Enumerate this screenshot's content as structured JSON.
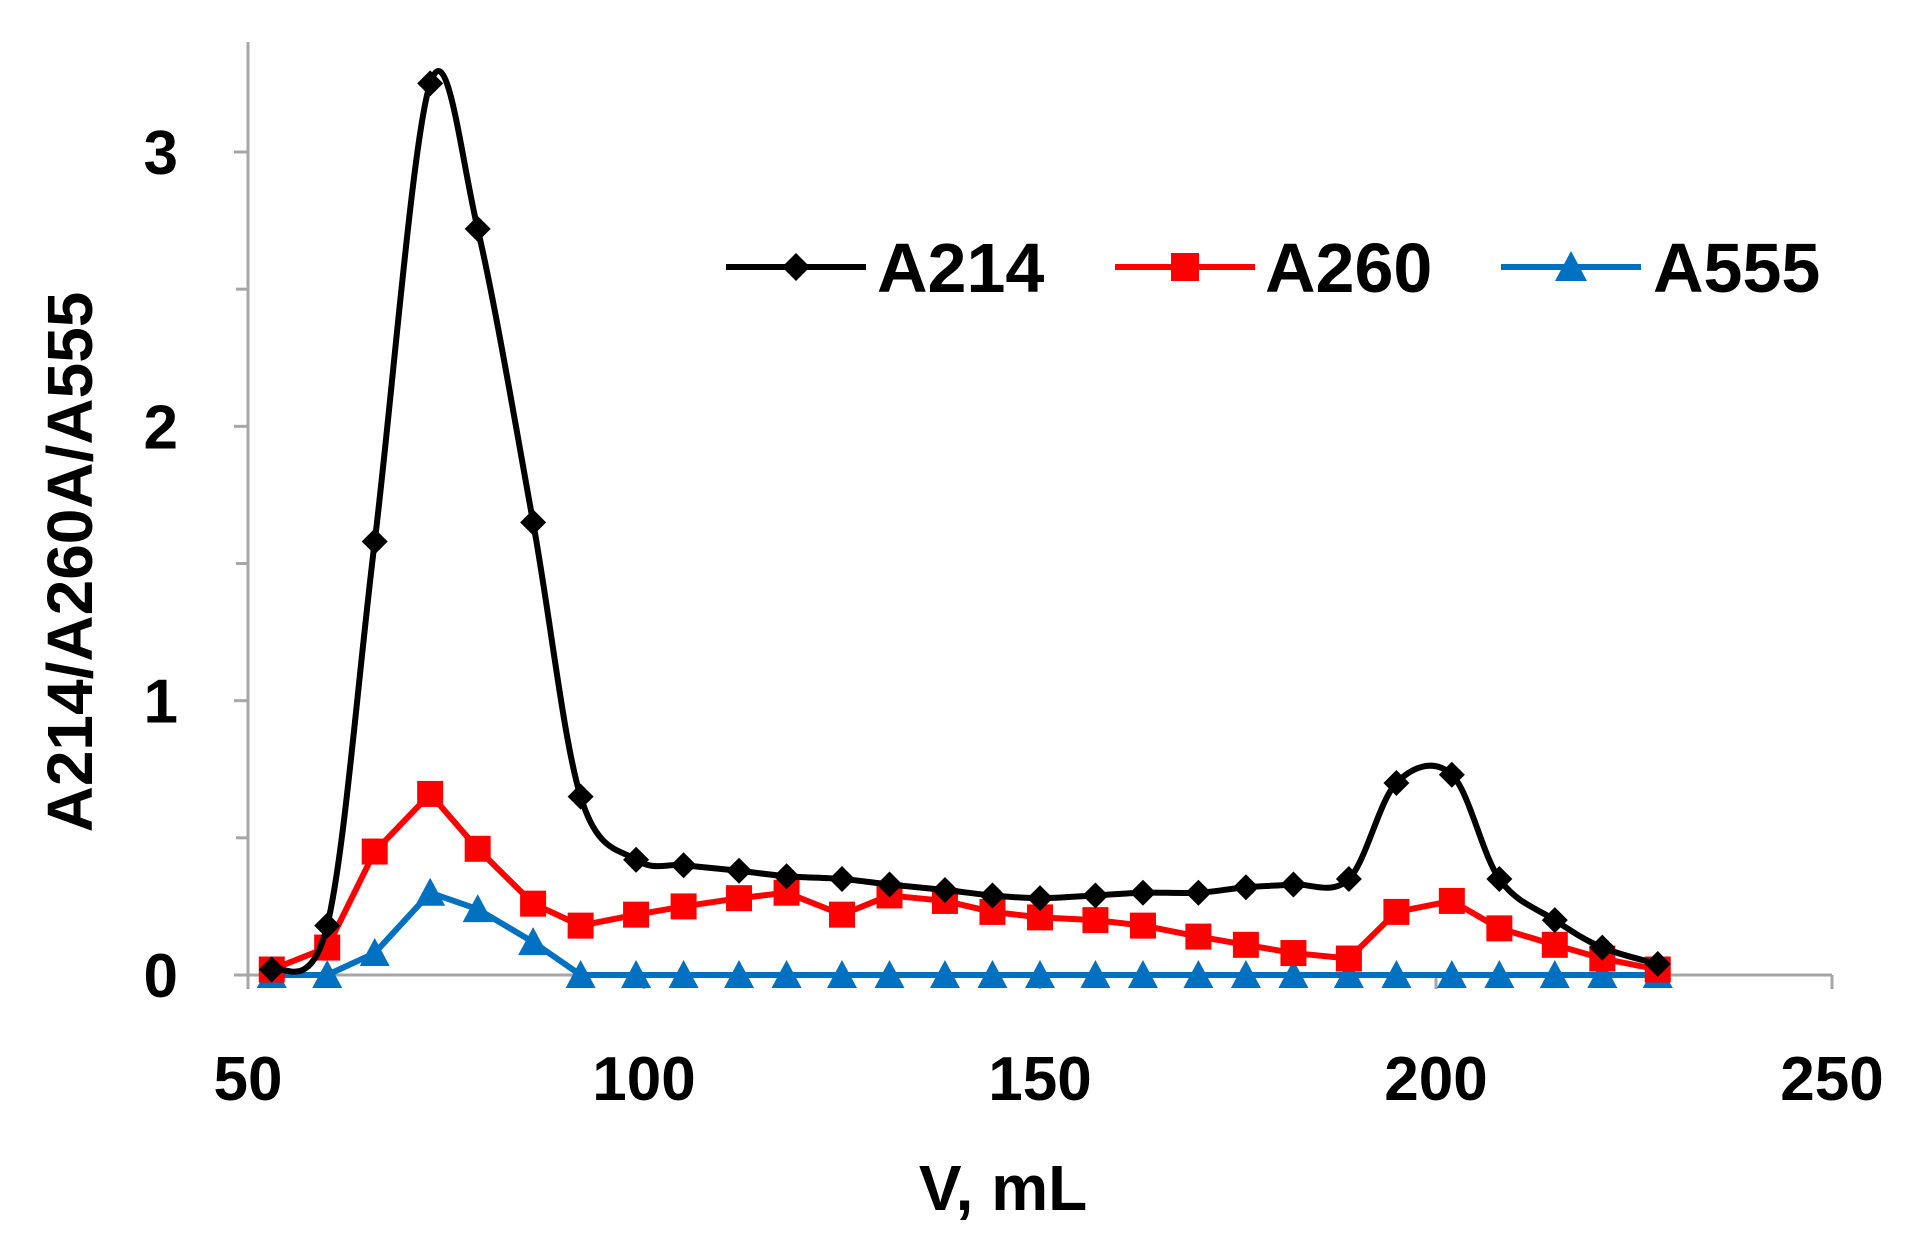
{
  "chart_data": {
    "type": "line",
    "title": "",
    "xlabel": "V, mL",
    "ylabel": "A214/A260A/A555",
    "xlim": [
      50,
      250
    ],
    "ylim": [
      0,
      3.3
    ],
    "x_ticks": [
      50,
      100,
      150,
      200,
      250
    ],
    "x_tick_labels": [
      "50",
      "100",
      "150",
      "200",
      "250"
    ],
    "y_ticks": [
      0,
      1,
      2,
      3
    ],
    "y_tick_labels": [
      "0",
      "1",
      "2",
      "3"
    ],
    "y_minor_ticks": [
      0.5,
      1.5,
      2.5
    ],
    "grid": false,
    "legend_position": "top-right",
    "series": [
      {
        "name": "A214",
        "color": "#000000",
        "marker": "diamond",
        "smooth": true,
        "x": [
          53,
          60,
          66,
          73,
          79,
          86,
          92,
          99,
          105,
          112,
          118,
          125,
          131,
          138,
          144,
          150,
          157,
          163,
          170,
          176,
          182,
          189,
          195,
          202,
          208,
          215,
          221,
          228
        ],
        "y": [
          0.02,
          0.18,
          1.58,
          3.25,
          2.72,
          1.65,
          0.65,
          0.42,
          0.4,
          0.38,
          0.36,
          0.35,
          0.33,
          0.31,
          0.29,
          0.28,
          0.29,
          0.3,
          0.3,
          0.32,
          0.33,
          0.35,
          0.7,
          0.73,
          0.35,
          0.2,
          0.1,
          0.04
        ]
      },
      {
        "name": "A260",
        "color": "#ff0000",
        "marker": "square",
        "smooth": false,
        "x": [
          53,
          60,
          66,
          73,
          79,
          86,
          92,
          99,
          105,
          112,
          118,
          125,
          131,
          138,
          144,
          150,
          157,
          163,
          170,
          176,
          182,
          189,
          195,
          202,
          208,
          215,
          221,
          228
        ],
        "y": [
          0.02,
          0.1,
          0.45,
          0.66,
          0.46,
          0.26,
          0.18,
          0.22,
          0.25,
          0.28,
          0.3,
          0.22,
          0.29,
          0.27,
          0.23,
          0.21,
          0.2,
          0.18,
          0.14,
          0.11,
          0.08,
          0.06,
          0.23,
          0.27,
          0.17,
          0.11,
          0.06,
          0.02
        ]
      },
      {
        "name": "A555",
        "color": "#0070c0",
        "marker": "triangle",
        "smooth": false,
        "x": [
          53,
          60,
          66,
          73,
          79,
          86,
          92,
          99,
          105,
          112,
          118,
          125,
          131,
          138,
          144,
          150,
          157,
          163,
          170,
          176,
          182,
          189,
          195,
          202,
          208,
          215,
          221,
          228
        ],
        "y": [
          0,
          0,
          0.08,
          0.3,
          0.24,
          0.12,
          0,
          0,
          0,
          0,
          0,
          0,
          0,
          0,
          0,
          0,
          0,
          0,
          0,
          0,
          0,
          0,
          0,
          0,
          0,
          0,
          0,
          0
        ]
      }
    ]
  }
}
